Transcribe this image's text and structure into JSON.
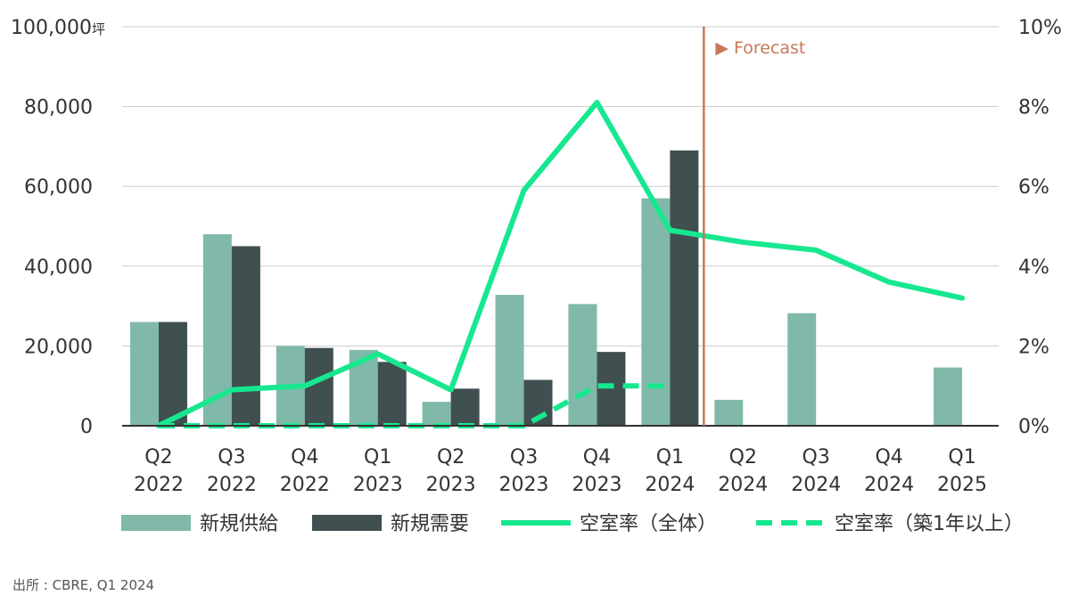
{
  "chart_data": {
    "type": "bar",
    "categories": [
      [
        "Q2",
        "2022"
      ],
      [
        "Q3",
        "2022"
      ],
      [
        "Q4",
        "2022"
      ],
      [
        "Q1",
        "2023"
      ],
      [
        "Q2",
        "2023"
      ],
      [
        "Q3",
        "2023"
      ],
      [
        "Q4",
        "2023"
      ],
      [
        "Q1",
        "2024"
      ],
      [
        "Q2",
        "2024"
      ],
      [
        "Q3",
        "2024"
      ],
      [
        "Q4",
        "2024"
      ],
      [
        "Q1",
        "2025"
      ]
    ],
    "left_axis": {
      "ylim": [
        0,
        100000
      ],
      "ticks": [
        "0",
        "20,000",
        "40,000",
        "60,000",
        "80,000",
        "100,000"
      ],
      "unit": "坪"
    },
    "right_axis": {
      "ylim": [
        0,
        10
      ],
      "ticks": [
        "0%",
        "2%",
        "4%",
        "6%",
        "8%",
        "10%"
      ]
    },
    "bar_series": [
      {
        "name": "新規供給",
        "color": "#80b9a9",
        "values": [
          26000,
          48000,
          20000,
          19000,
          6000,
          32800,
          30500,
          57000,
          6500,
          28200,
          null,
          14600
        ]
      },
      {
        "name": "新規需要",
        "color": "#404f50",
        "values": [
          26000,
          45000,
          19500,
          16000,
          9300,
          11500,
          18500,
          69000,
          null,
          null,
          null,
          null
        ]
      }
    ],
    "line_series": [
      {
        "name": "空室率（全体）",
        "color": "#17e88f",
        "dashed": false,
        "values": [
          0.0,
          0.9,
          1.0,
          1.8,
          0.9,
          5.9,
          8.1,
          4.9,
          4.6,
          4.4,
          3.6,
          3.2
        ]
      },
      {
        "name": "空室率（築1年以上）",
        "color": "#17e88f",
        "dashed": true,
        "values": [
          0.0,
          0.0,
          0.0,
          0.0,
          0.0,
          0.0,
          1.0,
          1.0,
          null,
          null,
          null,
          null
        ]
      }
    ],
    "forecast": {
      "label": "▶ Forecast",
      "after_index": 7,
      "color": "#c87857"
    },
    "grid": true,
    "legend_placement": "bottom"
  },
  "source": "出所 : CBRE, Q1 2024"
}
